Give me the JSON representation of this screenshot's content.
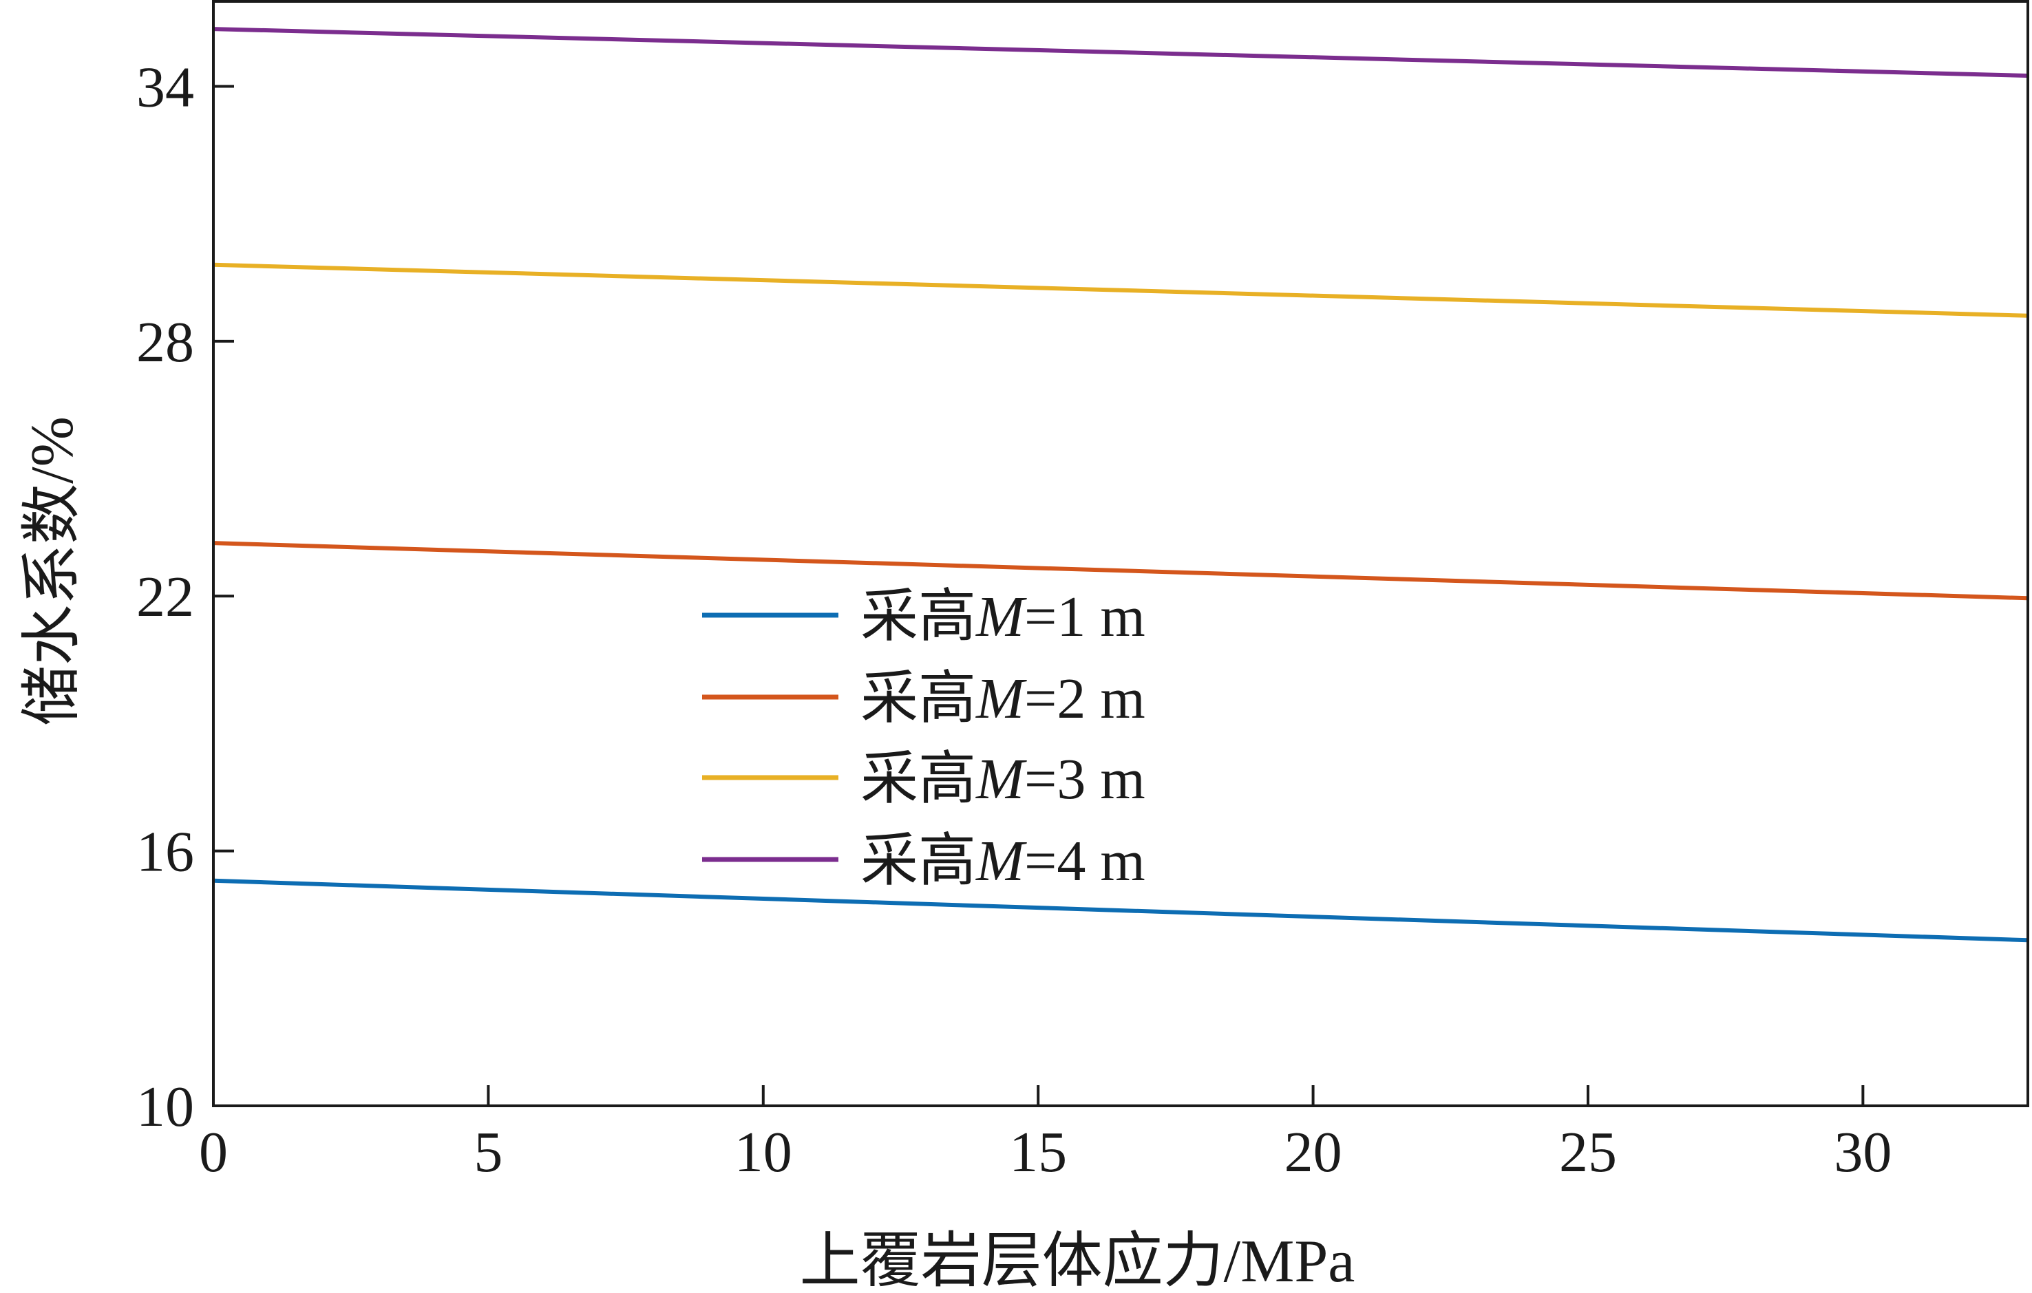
{
  "chart_data": {
    "type": "line",
    "title": "",
    "xlabel": "上覆岩层体应力/MPa",
    "ylabel": "储水系数/%",
    "xlim": [
      0,
      33
    ],
    "ylim": [
      10,
      36
    ],
    "xticks": [
      0,
      5,
      10,
      15,
      20,
      25,
      30
    ],
    "yticks": [
      10,
      16,
      22,
      28,
      34
    ],
    "grid": false,
    "legend_position": "center",
    "series": [
      {
        "name": "采高M=1 m",
        "legend_prefix": "采高",
        "legend_italic": "M",
        "legend_suffix": "=1 m",
        "color": "#0d6db3",
        "x": [
          0,
          33
        ],
        "y": [
          15.3,
          13.9
        ]
      },
      {
        "name": "采高M=2 m",
        "legend_prefix": "采高",
        "legend_italic": "M",
        "legend_suffix": "=2 m",
        "color": "#d4561c",
        "x": [
          0,
          33
        ],
        "y": [
          23.25,
          21.95
        ]
      },
      {
        "name": "采高M=3 m",
        "legend_prefix": "采高",
        "legend_italic": "M",
        "legend_suffix": "=3 m",
        "color": "#e8b025",
        "x": [
          0,
          33
        ],
        "y": [
          29.8,
          28.6
        ]
      },
      {
        "name": "采高M=4 m",
        "legend_prefix": "采高",
        "legend_italic": "M",
        "legend_suffix": "=4 m",
        "color": "#7b2d8e",
        "x": [
          0,
          33
        ],
        "y": [
          35.35,
          34.25
        ]
      }
    ]
  }
}
